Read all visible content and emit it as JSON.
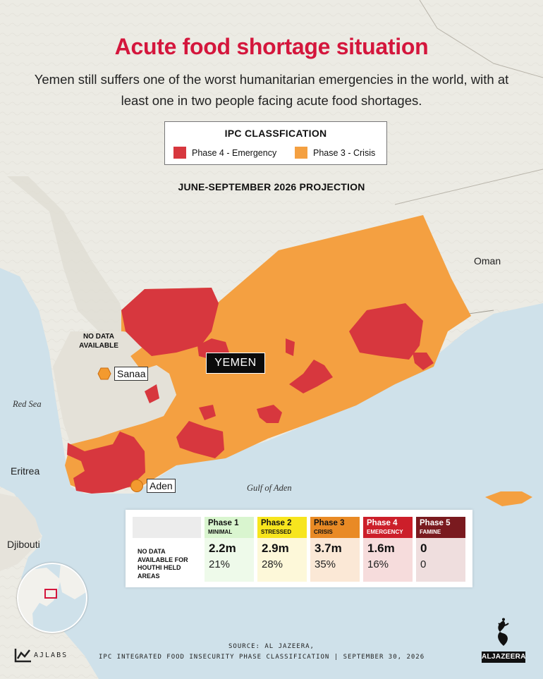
{
  "title": "Acute food shortage situation",
  "subtitle": "Yemen still suffers one of the worst humanitarian emergencies in the world, with at least one in two people facing acute food shortages.",
  "legend": {
    "title": "IPC CLASSFICATION",
    "items": [
      {
        "label": "Phase 4 - Emergency",
        "color": "#d7373e"
      },
      {
        "label": "Phase 3 - Crisis",
        "color": "#f4a041"
      }
    ]
  },
  "projection": "JUNE-SEPTEMBER 2026 PROJECTION",
  "map_labels": {
    "oman": "Oman",
    "red_sea": "Red Sea",
    "eritrea": "Eritrea",
    "djibouti": "Djibouti",
    "gulf_of_aden": "Gulf of Aden",
    "no_data": "NO DATA AVAILABLE",
    "yemen": "YEMEN",
    "sanaa": "Sanaa",
    "aden": "Aden"
  },
  "table": {
    "no_data_note": "NO DATA AVAILABLE FOR HOUTHI HELD AREAS",
    "phases": [
      {
        "name": "Phase 1",
        "sub": "MINIMAL",
        "value": "2.2m",
        "pct": "21%",
        "head_color": "#d9f5cf",
        "body_color": "#eefaea",
        "text_color": "#111111"
      },
      {
        "name": "Phase 2",
        "sub": "STRESSED",
        "value": "2.9m",
        "pct": "28%",
        "head_color": "#f7e51e",
        "body_color": "#fdf8d9",
        "text_color": "#111111"
      },
      {
        "name": "Phase 3",
        "sub": "CRISIS",
        "value": "3.7m",
        "pct": "35%",
        "head_color": "#e98a25",
        "body_color": "#fbe8d6",
        "text_color": "#111111"
      },
      {
        "name": "Phase 4",
        "sub": "EMERGENCY",
        "value": "1.6m",
        "pct": "16%",
        "head_color": "#cc1f2a",
        "body_color": "#f6dcdc",
        "text_color": "#ffffff"
      },
      {
        "name": "Phase 5",
        "sub": "FAMINE",
        "value": "0",
        "pct": "0",
        "head_color": "#7a1a1f",
        "body_color": "#efdede",
        "text_color": "#ffffff"
      }
    ]
  },
  "footer": {
    "source": "SOURCE: AL JAZEERA,",
    "line": "IPC INTEGRATED FOOD INSECURITY PHASE CLASSIFICATION   |   SEPTEMBER 30, 2026",
    "ajlabs": "AJLABS",
    "aljazeera": "ALJAZEERA"
  },
  "colors": {
    "phase4": "#d7373e",
    "phase3": "#f4a041",
    "sea": "#cfe1ea",
    "land": "#ecebe4",
    "title": "#d4163c"
  },
  "icons": [
    "sanaa-marker-icon",
    "aden-marker-icon",
    "ajlabs-logo-icon",
    "aljazeera-logo-icon",
    "locator-globe-icon"
  ]
}
